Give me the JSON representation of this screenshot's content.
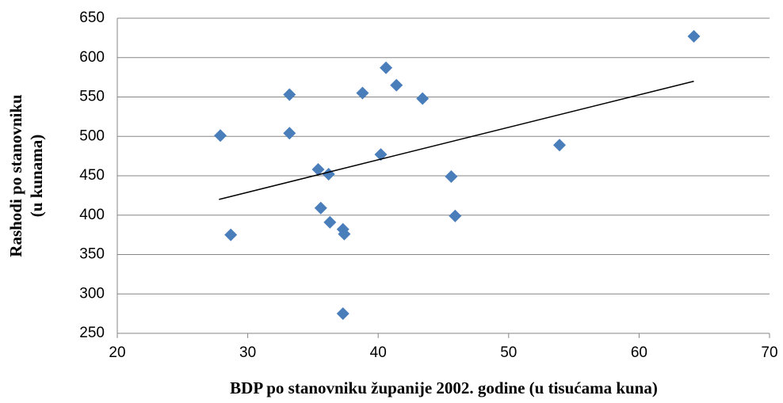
{
  "chart_data": {
    "type": "scatter",
    "xlabel": "BDP po stanovniku županije 2002. godine (u tisućama kuna)",
    "ylabel": [
      "Rashodi po stanovniku",
      "(u kunama)"
    ],
    "series": [
      {
        "color": "#4a7ebb",
        "x": [
          27.9,
          28.7,
          33.2,
          33.2,
          35.4,
          35.6,
          36.2,
          36.3,
          37.3,
          37.4,
          37.3,
          38.8,
          40.2,
          40.6,
          41.4,
          43.4,
          45.6,
          45.9,
          53.9,
          64.2
        ],
        "values": [
          501,
          375,
          553,
          504,
          458,
          409,
          452,
          391,
          382,
          376,
          275,
          555,
          477,
          587,
          565,
          548,
          449,
          399,
          489,
          627
        ]
      }
    ],
    "trendline": {
      "color": "#000000",
      "x": [
        27.8,
        64.2
      ],
      "values": [
        420,
        570
      ]
    },
    "xlim": [
      20,
      70
    ],
    "xticks": [
      20,
      30,
      40,
      50,
      60,
      70
    ],
    "ylim": [
      250,
      650
    ],
    "yticks": [
      250,
      300,
      350,
      400,
      450,
      500,
      550,
      600,
      650
    ],
    "grid": true
  }
}
